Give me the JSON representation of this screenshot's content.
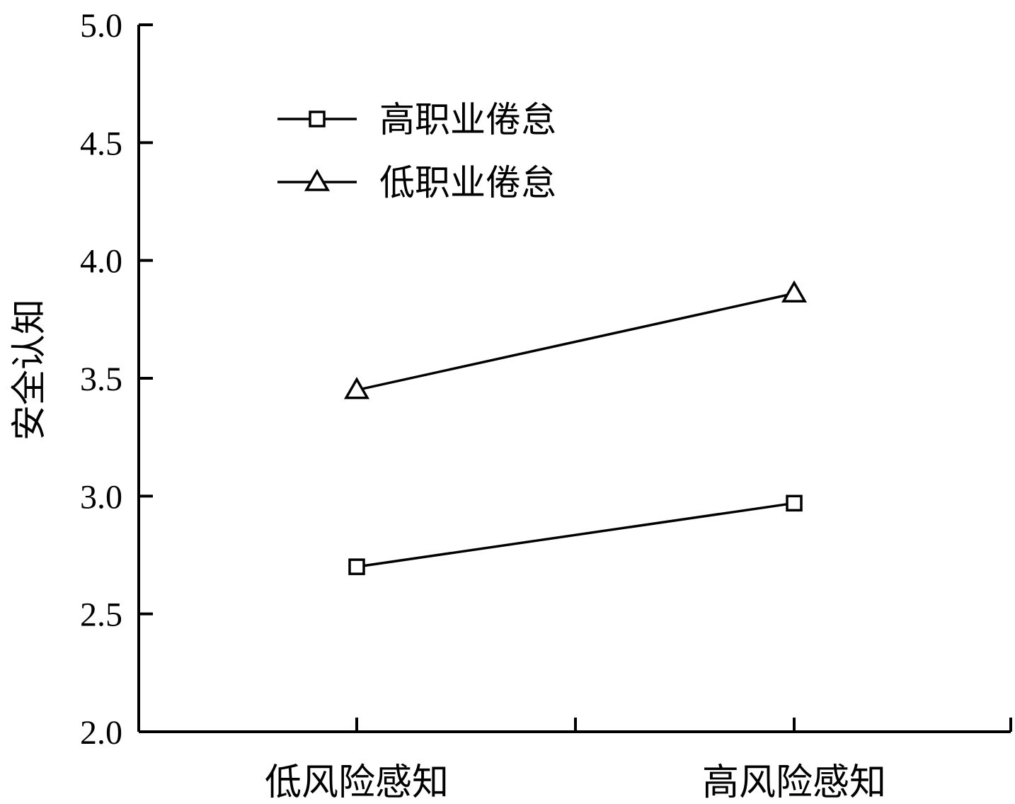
{
  "chart_data": {
    "type": "line",
    "categories": [
      "低风险感知",
      "高风险感知"
    ],
    "series": [
      {
        "name": "高职业倦怠",
        "values": [
          2.7,
          2.97
        ],
        "marker": "square"
      },
      {
        "name": "低职业倦怠",
        "values": [
          3.45,
          3.86
        ],
        "marker": "triangle"
      }
    ],
    "ylabel": "安全认知",
    "xlabel": "",
    "ylim": [
      2.0,
      5.0
    ],
    "yticks": [
      "2.0",
      "2.5",
      "3.0",
      "3.5",
      "4.0",
      "4.5",
      "5.0"
    ],
    "grid": false,
    "legend_position": "top-left",
    "color": "#000000"
  }
}
